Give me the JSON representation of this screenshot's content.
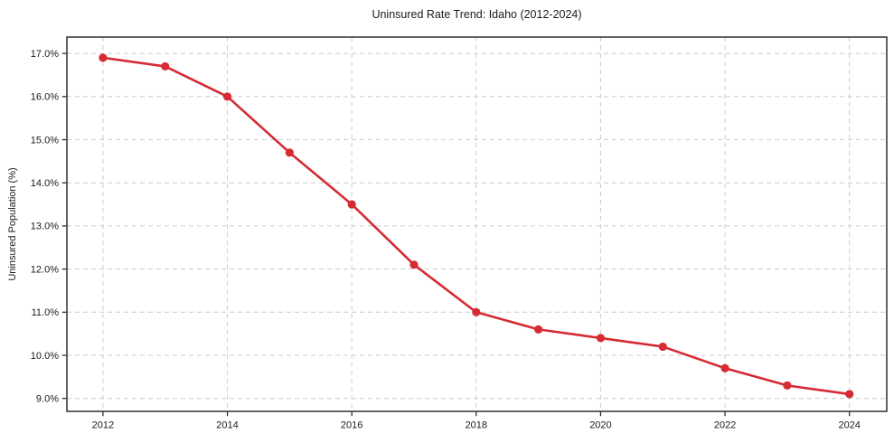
{
  "chart_data": {
    "type": "line",
    "title": "Uninsured Rate Trend: Idaho (2012-2024)",
    "xlabel": "",
    "ylabel": "Uninsured Population (%)",
    "x": [
      2012,
      2013,
      2014,
      2015,
      2016,
      2017,
      2018,
      2019,
      2020,
      2021,
      2022,
      2023,
      2024
    ],
    "series": [
      {
        "name": "Uninsured Rate",
        "values": [
          16.9,
          16.7,
          16.0,
          14.7,
          13.5,
          12.1,
          11.0,
          10.6,
          10.4,
          10.2,
          9.7,
          9.3,
          9.1
        ]
      }
    ],
    "x_ticks": [
      {
        "value": 2012,
        "label": "2012"
      },
      {
        "value": 2014,
        "label": "2014"
      },
      {
        "value": 2016,
        "label": "2016"
      },
      {
        "value": 2018,
        "label": "2018"
      },
      {
        "value": 2020,
        "label": "2020"
      },
      {
        "value": 2022,
        "label": "2022"
      },
      {
        "value": 2024,
        "label": "2024"
      }
    ],
    "y_ticks": [
      {
        "value": 9.0,
        "label": "9.0%"
      },
      {
        "value": 10.0,
        "label": "10.0%"
      },
      {
        "value": 11.0,
        "label": "11.0%"
      },
      {
        "value": 12.0,
        "label": "12.0%"
      },
      {
        "value": 13.0,
        "label": "13.0%"
      },
      {
        "value": 14.0,
        "label": "14.0%"
      },
      {
        "value": 15.0,
        "label": "15.0%"
      },
      {
        "value": 16.0,
        "label": "16.0%"
      },
      {
        "value": 17.0,
        "label": "17.0%"
      }
    ],
    "xlim": [
      2011.42,
      2024.6
    ],
    "ylim": [
      8.7,
      17.38
    ],
    "grid": true,
    "grid_style": "dashed",
    "legend": "none",
    "marker": "circle",
    "colors": {
      "line": "#d62b33",
      "grid": "#cccccc",
      "axis": "#1f1f1f",
      "text": "#1a1a1a",
      "background": "#ffffff"
    }
  }
}
